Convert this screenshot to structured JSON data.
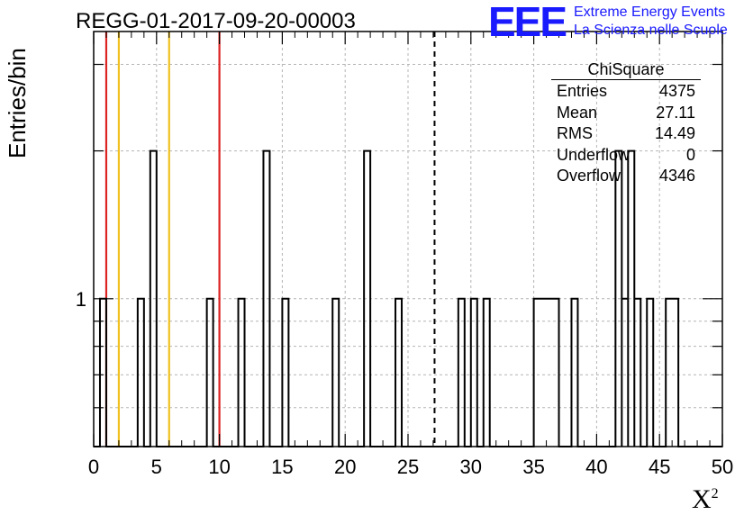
{
  "run_title": "REGG-01-2017-09-20-00003",
  "logo": {
    "mark": "EEE",
    "line1": "Extreme Energy Events",
    "line2": "La Scienza nelle Scuole",
    "color": "#1a1aff"
  },
  "stats_box": {
    "title": "ChiSquare",
    "rows": [
      {
        "label": "Entries",
        "value": "4375"
      },
      {
        "label": "Mean",
        "value": "27.11"
      },
      {
        "label": "RMS",
        "value": "14.49"
      },
      {
        "label": "Underflow",
        "value": "0"
      },
      {
        "label": "Overflow",
        "value": "4346"
      }
    ]
  },
  "chart_data": {
    "type": "bar",
    "title": "REGG-01-2017-09-20-00003",
    "xlabel": "X",
    "xlabel_superscript": "2",
    "ylabel": "Entries/bin",
    "xlim": [
      0,
      50
    ],
    "ylim": [
      0.5,
      3.5
    ],
    "yscale": "log",
    "grid": true,
    "x_ticks": [
      "0",
      "5",
      "10",
      "15",
      "20",
      "25",
      "30",
      "35",
      "40",
      "45",
      "50"
    ],
    "y_tick_labels": [
      {
        "value": 1,
        "label": "1"
      }
    ],
    "bins": [
      {
        "x0": 0.5,
        "x1": 1.0,
        "count": 1
      },
      {
        "x0": 3.5,
        "x1": 4.0,
        "count": 1
      },
      {
        "x0": 4.5,
        "x1": 5.0,
        "count": 2
      },
      {
        "x0": 9.0,
        "x1": 9.5,
        "count": 1
      },
      {
        "x0": 11.5,
        "x1": 12.0,
        "count": 1
      },
      {
        "x0": 13.5,
        "x1": 14.0,
        "count": 2
      },
      {
        "x0": 15.0,
        "x1": 15.5,
        "count": 1
      },
      {
        "x0": 19.0,
        "x1": 19.5,
        "count": 1
      },
      {
        "x0": 21.5,
        "x1": 22.0,
        "count": 2
      },
      {
        "x0": 24.0,
        "x1": 24.5,
        "count": 1
      },
      {
        "x0": 29.0,
        "x1": 29.5,
        "count": 1
      },
      {
        "x0": 30.0,
        "x1": 30.5,
        "count": 1
      },
      {
        "x0": 31.0,
        "x1": 31.5,
        "count": 1
      },
      {
        "x0": 35.0,
        "x1": 37.0,
        "count": 1
      },
      {
        "x0": 38.0,
        "x1": 38.5,
        "count": 1
      },
      {
        "x0": 41.5,
        "x1": 42.0,
        "count": 2
      },
      {
        "x0": 42.0,
        "x1": 42.5,
        "count": 1
      },
      {
        "x0": 42.5,
        "x1": 43.0,
        "count": 2
      },
      {
        "x0": 43.0,
        "x1": 43.5,
        "count": 1
      },
      {
        "x0": 44.0,
        "x1": 44.5,
        "count": 1
      },
      {
        "x0": 45.5,
        "x1": 46.5,
        "count": 1
      }
    ],
    "vertical_lines": [
      {
        "x": 1,
        "color": "#dd2222",
        "style": "solid"
      },
      {
        "x": 2,
        "color": "#f0c020",
        "style": "solid"
      },
      {
        "x": 6,
        "color": "#f0c020",
        "style": "solid"
      },
      {
        "x": 10,
        "color": "#dd2222",
        "style": "solid"
      },
      {
        "x": 27.11,
        "color": "#000000",
        "style": "dashed"
      }
    ]
  }
}
